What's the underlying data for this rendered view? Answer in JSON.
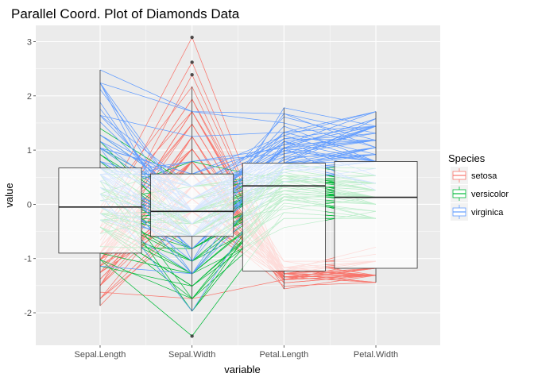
{
  "chart_data": {
    "type": "line",
    "title": "Parallel Coord. Plot of Diamonds Data",
    "xlabel": "variable",
    "ylabel": "value",
    "categories": [
      "Sepal.Length",
      "Sepal.Width",
      "Petal.Length",
      "Petal.Width"
    ],
    "ylim": [
      -2.6,
      3.3
    ],
    "yticks": [
      -2,
      -1,
      0,
      1,
      2,
      3
    ],
    "grid": true,
    "legend_position": "right",
    "legend": {
      "title": "Species",
      "entries": [
        "setosa",
        "versicolor",
        "virginica"
      ]
    },
    "colors": {
      "setosa": "#F8766D",
      "versicolor": "#00BA38",
      "virginica": "#619CFF",
      "panel": "#EBEBEB",
      "grid": "#FFFFFF"
    },
    "boxplots": [
      {
        "category": "Sepal.Length",
        "q1": -0.9,
        "median": -0.05,
        "q3": 0.67,
        "whisker_low": -1.87,
        "whisker_high": 2.48,
        "outliers": []
      },
      {
        "category": "Sepal.Width",
        "q1": -0.59,
        "median": -0.13,
        "q3": 0.56,
        "whisker_low": -1.97,
        "whisker_high": 2.17,
        "outliers": [
          3.08,
          2.62,
          2.39,
          -2.43
        ]
      },
      {
        "category": "Petal.Length",
        "q1": -1.23,
        "median": 0.34,
        "q3": 0.76,
        "whisker_low": -1.56,
        "whisker_high": 1.78,
        "outliers": []
      },
      {
        "category": "Petal.Width",
        "q1": -1.18,
        "median": 0.13,
        "q3": 0.79,
        "whisker_low": -1.44,
        "whisker_high": 1.71,
        "outliers": []
      }
    ],
    "series": [
      {
        "name": "setosa",
        "lines": [
          [
            -0.9,
            1.02,
            -1.34,
            -1.31
          ],
          [
            -1.14,
            -0.13,
            -1.34,
            -1.31
          ],
          [
            -1.38,
            0.33,
            -1.39,
            -1.31
          ],
          [
            -1.5,
            0.1,
            -1.28,
            -1.31
          ],
          [
            -1.02,
            1.25,
            -1.34,
            -1.31
          ],
          [
            -0.54,
            1.94,
            -1.17,
            -1.05
          ],
          [
            -1.5,
            0.79,
            -1.34,
            -1.18
          ],
          [
            -1.02,
            0.79,
            -1.28,
            -1.31
          ],
          [
            -1.74,
            -0.36,
            -1.34,
            -1.31
          ],
          [
            -1.14,
            0.1,
            -1.28,
            -1.44
          ],
          [
            -0.54,
            1.48,
            -1.28,
            -1.31
          ],
          [
            -1.26,
            0.79,
            -1.22,
            -1.31
          ],
          [
            -1.26,
            -0.13,
            -1.34,
            -1.44
          ],
          [
            -1.87,
            -0.13,
            -1.51,
            -1.44
          ],
          [
            -0.05,
            2.17,
            -1.45,
            -1.31
          ],
          [
            -0.17,
            3.08,
            -1.28,
            -1.05
          ],
          [
            -0.54,
            1.94,
            -1.39,
            -1.05
          ],
          [
            -0.9,
            1.02,
            -1.34,
            -1.18
          ],
          [
            -0.17,
            1.71,
            -1.17,
            -1.18
          ],
          [
            -0.9,
            1.71,
            -1.28,
            -1.18
          ],
          [
            -0.54,
            0.79,
            -1.17,
            -1.31
          ],
          [
            -0.9,
            1.48,
            -1.28,
            -1.05
          ],
          [
            -1.5,
            1.25,
            -1.56,
            -1.31
          ],
          [
            -0.9,
            0.56,
            -1.17,
            -0.92
          ],
          [
            -1.26,
            0.79,
            -1.05,
            -1.31
          ],
          [
            -1.02,
            -0.13,
            -1.22,
            -1.31
          ],
          [
            -1.02,
            0.79,
            -1.22,
            -1.05
          ],
          [
            -0.78,
            1.02,
            -1.28,
            -1.31
          ],
          [
            -0.78,
            0.79,
            -1.34,
            -1.31
          ],
          [
            -1.38,
            0.33,
            -1.22,
            -1.31
          ],
          [
            -1.26,
            0.1,
            -1.22,
            -1.31
          ],
          [
            -0.54,
            0.79,
            -1.28,
            -1.05
          ],
          [
            -0.78,
            2.39,
            -1.28,
            -1.44
          ],
          [
            -0.42,
            2.62,
            -1.34,
            -1.31
          ],
          [
            -1.14,
            0.1,
            -1.28,
            -1.31
          ],
          [
            -1.02,
            0.33,
            -1.45,
            -1.31
          ],
          [
            -0.42,
            1.02,
            -1.39,
            -1.31
          ],
          [
            -1.14,
            1.25,
            -1.34,
            -1.44
          ],
          [
            -1.74,
            -0.13,
            -1.39,
            -1.31
          ],
          [
            -0.9,
            0.79,
            -1.28,
            -1.31
          ],
          [
            -1.02,
            1.02,
            -1.39,
            -1.18
          ],
          [
            -1.62,
            -1.74,
            -1.39,
            -1.18
          ],
          [
            -1.74,
            0.33,
            -1.39,
            -1.31
          ],
          [
            -1.02,
            1.02,
            -1.22,
            -0.79
          ],
          [
            -0.9,
            1.71,
            -1.05,
            -1.05
          ],
          [
            -1.26,
            -0.13,
            -1.34,
            -1.18
          ],
          [
            -0.9,
            1.71,
            -1.22,
            -1.31
          ],
          [
            -1.5,
            0.33,
            -1.34,
            -1.31
          ],
          [
            -0.66,
            1.48,
            -1.28,
            -1.31
          ],
          [
            -1.02,
            0.56,
            -1.34,
            -1.31
          ]
        ]
      },
      {
        "name": "versicolor",
        "lines": [
          [
            1.4,
            0.33,
            0.53,
            0.26
          ],
          [
            0.67,
            0.33,
            0.42,
            0.39
          ],
          [
            1.28,
            0.1,
            0.65,
            0.39
          ],
          [
            -0.42,
            -1.74,
            0.14,
            0.13
          ],
          [
            0.79,
            -0.59,
            0.48,
            0.39
          ],
          [
            -0.17,
            -0.59,
            0.42,
            0.13
          ],
          [
            0.55,
            0.56,
            0.53,
            0.53
          ],
          [
            -1.14,
            -1.51,
            -0.26,
            -0.26
          ],
          [
            0.92,
            -0.36,
            0.48,
            0.13
          ],
          [
            -0.78,
            -0.82,
            0.08,
            0.26
          ],
          [
            -1.02,
            -2.43,
            -0.15,
            -0.26
          ],
          [
            0.07,
            -0.13,
            0.25,
            0.39
          ],
          [
            0.19,
            -1.97,
            0.14,
            -0.26
          ],
          [
            0.31,
            -0.36,
            0.53,
            0.26
          ],
          [
            -0.29,
            -0.36,
            -0.09,
            0.13
          ],
          [
            1.04,
            0.1,
            0.36,
            0.26
          ],
          [
            -0.29,
            -0.13,
            0.42,
            0.39
          ],
          [
            -0.05,
            -0.82,
            0.19,
            -0.26
          ],
          [
            0.43,
            -1.97,
            0.42,
            0.39
          ],
          [
            -0.29,
            -1.28,
            0.08,
            -0.13
          ],
          [
            0.07,
            0.33,
            0.59,
            0.79
          ],
          [
            0.31,
            -0.59,
            0.14,
            0.13
          ],
          [
            0.55,
            -1.28,
            0.65,
            0.39
          ],
          [
            0.31,
            -0.59,
            0.53,
            0.0
          ],
          [
            0.67,
            -0.36,
            0.31,
            0.13
          ],
          [
            0.92,
            -0.13,
            0.36,
            0.26
          ],
          [
            1.16,
            -0.59,
            0.59,
            0.26
          ],
          [
            1.04,
            -0.13,
            0.7,
            0.66
          ],
          [
            0.19,
            -0.36,
            0.42,
            0.39
          ],
          [
            -0.17,
            -1.05,
            -0.15,
            -0.26
          ],
          [
            -0.42,
            -1.51,
            0.02,
            -0.13
          ],
          [
            -0.42,
            -1.51,
            -0.03,
            -0.26
          ],
          [
            -0.05,
            -0.82,
            0.08,
            0.0
          ],
          [
            0.19,
            -0.82,
            0.76,
            0.53
          ],
          [
            -0.54,
            -0.13,
            0.42,
            0.39
          ],
          [
            0.19,
            0.79,
            0.42,
            0.53
          ],
          [
            1.04,
            0.1,
            0.53,
            0.39
          ],
          [
            0.55,
            -1.74,
            0.36,
            0.13
          ],
          [
            -0.29,
            -0.13,
            0.19,
            0.13
          ],
          [
            -0.42,
            -1.28,
            0.14,
            0.13
          ],
          [
            -0.42,
            -1.05,
            0.36,
            0.0
          ],
          [
            0.31,
            -0.13,
            0.48,
            0.26
          ],
          [
            -0.05,
            -1.05,
            0.14,
            0.0
          ],
          [
            -1.02,
            -1.74,
            -0.26,
            -0.26
          ],
          [
            -0.29,
            -0.82,
            0.25,
            0.13
          ],
          [
            -0.17,
            -0.13,
            0.25,
            0.0
          ],
          [
            -0.17,
            -0.36,
            0.25,
            0.13
          ],
          [
            0.43,
            -0.36,
            0.31,
            0.13
          ],
          [
            -0.9,
            -1.28,
            -0.43,
            -0.13
          ],
          [
            -0.17,
            -0.59,
            0.19,
            0.13
          ]
        ]
      },
      {
        "name": "virginica",
        "lines": [
          [
            0.55,
            0.56,
            1.27,
            1.71
          ],
          [
            -0.05,
            -0.82,
            0.76,
            0.92
          ],
          [
            1.52,
            -0.13,
            1.21,
            1.18
          ],
          [
            0.55,
            -0.36,
            1.04,
            0.79
          ],
          [
            0.79,
            -0.13,
            1.16,
            1.31
          ],
          [
            2.12,
            -0.13,
            1.61,
            1.18
          ],
          [
            -1.14,
            -1.28,
            0.42,
            0.66
          ],
          [
            1.76,
            -0.36,
            1.44,
            0.79
          ],
          [
            1.04,
            -1.28,
            1.16,
            0.79
          ],
          [
            1.64,
            1.25,
            1.33,
            1.71
          ],
          [
            0.79,
            0.33,
            0.76,
            1.05
          ],
          [
            0.67,
            -0.82,
            0.87,
            0.92
          ],
          [
            1.16,
            -0.13,
            0.99,
            1.18
          ],
          [
            -0.17,
            -1.28,
            0.7,
            1.05
          ],
          [
            -0.05,
            -0.59,
            0.76,
            1.58
          ],
          [
            0.67,
            0.33,
            0.87,
            1.44
          ],
          [
            0.79,
            -0.13,
            0.99,
            0.79
          ],
          [
            2.24,
            1.71,
            1.67,
            1.31
          ],
          [
            2.24,
            -1.05,
            1.78,
            1.44
          ],
          [
            0.19,
            -1.97,
            0.7,
            0.39
          ],
          [
            1.28,
            0.33,
            1.1,
            1.44
          ],
          [
            -0.29,
            -0.59,
            0.65,
            1.05
          ],
          [
            2.24,
            -0.59,
            1.67,
            1.05
          ],
          [
            0.55,
            -0.82,
            0.65,
            0.79
          ],
          [
            1.04,
            0.56,
            1.1,
            1.18
          ],
          [
            1.64,
            0.33,
            1.27,
            0.79
          ],
          [
            0.43,
            -0.59,
            0.59,
            0.79
          ],
          [
            0.31,
            -0.13,
            0.65,
            0.79
          ],
          [
            0.67,
            -0.59,
            1.04,
            1.18
          ],
          [
            1.64,
            -0.13,
            1.16,
            0.53
          ],
          [
            1.88,
            -0.59,
            1.33,
            0.92
          ],
          [
            2.48,
            1.71,
            1.5,
            1.05
          ],
          [
            0.67,
            -0.59,
            1.04,
            1.31
          ],
          [
            0.55,
            -0.59,
            0.76,
            0.39
          ],
          [
            0.31,
            -1.05,
            1.04,
            0.26
          ],
          [
            2.24,
            -0.13,
            1.33,
            1.44
          ],
          [
            0.55,
            0.79,
            1.04,
            1.58
          ],
          [
            0.67,
            0.1,
            0.99,
            0.79
          ],
          [
            0.19,
            -0.13,
            0.59,
            0.79
          ],
          [
            1.28,
            0.1,
            0.93,
            1.18
          ],
          [
            1.04,
            0.1,
            1.04,
            1.58
          ],
          [
            1.28,
            0.1,
            0.76,
            1.44
          ],
          [
            -0.05,
            -0.82,
            0.76,
            0.92
          ],
          [
            1.16,
            0.33,
            1.21,
            1.44
          ],
          [
            1.04,
            0.56,
            1.1,
            1.71
          ],
          [
            1.04,
            -0.13,
            0.82,
            1.44
          ],
          [
            0.55,
            -1.28,
            0.7,
            0.92
          ],
          [
            0.79,
            -0.13,
            0.82,
            1.05
          ],
          [
            0.43,
            0.79,
            0.93,
            1.44
          ],
          [
            0.07,
            -0.13,
            0.76,
            0.79
          ]
        ]
      }
    ]
  }
}
